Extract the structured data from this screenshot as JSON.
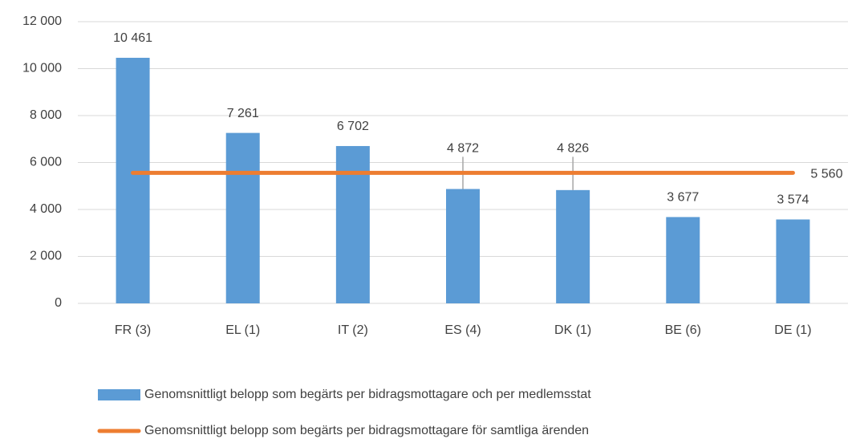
{
  "chart_data": {
    "type": "bar",
    "categories": [
      "FR (3)",
      "EL (1)",
      "IT (2)",
      "ES (4)",
      "DK (1)",
      "BE (6)",
      "DE (1)"
    ],
    "series": [
      {
        "name": "Genomsnittligt belopp som begärts per bidragsmottagare och per medlemsstat",
        "type": "bar",
        "color": "#5b9bd5",
        "values": [
          10461,
          7261,
          6702,
          4872,
          4826,
          3677,
          3574
        ],
        "value_labels": [
          "10 461",
          "7 261",
          "6 702",
          "4 872",
          "4 826",
          "3 677",
          "3 574"
        ]
      },
      {
        "name": "Genomsnittligt belopp som begärts per bidragsmottagare för samtliga ärenden",
        "type": "line",
        "color": "#ed7d31",
        "values": [
          5560,
          5560,
          5560,
          5560,
          5560,
          5560,
          5560
        ],
        "value_labels": [
          null,
          null,
          null,
          null,
          null,
          null,
          "5 560"
        ]
      }
    ],
    "ylim": [
      0,
      12000
    ],
    "yticks": [
      0,
      {
        "value": 2000,
        "label": "2 000"
      },
      {
        "value": 4000,
        "label": "4 000"
      },
      {
        "value": 6000,
        "label": "6 000"
      },
      {
        "value": 8000,
        "label": "8 000"
      },
      {
        "value": 10000,
        "label": "10 000"
      },
      {
        "value": 12000,
        "label": "12 000"
      }
    ],
    "grid": true,
    "legend": "bottom"
  }
}
